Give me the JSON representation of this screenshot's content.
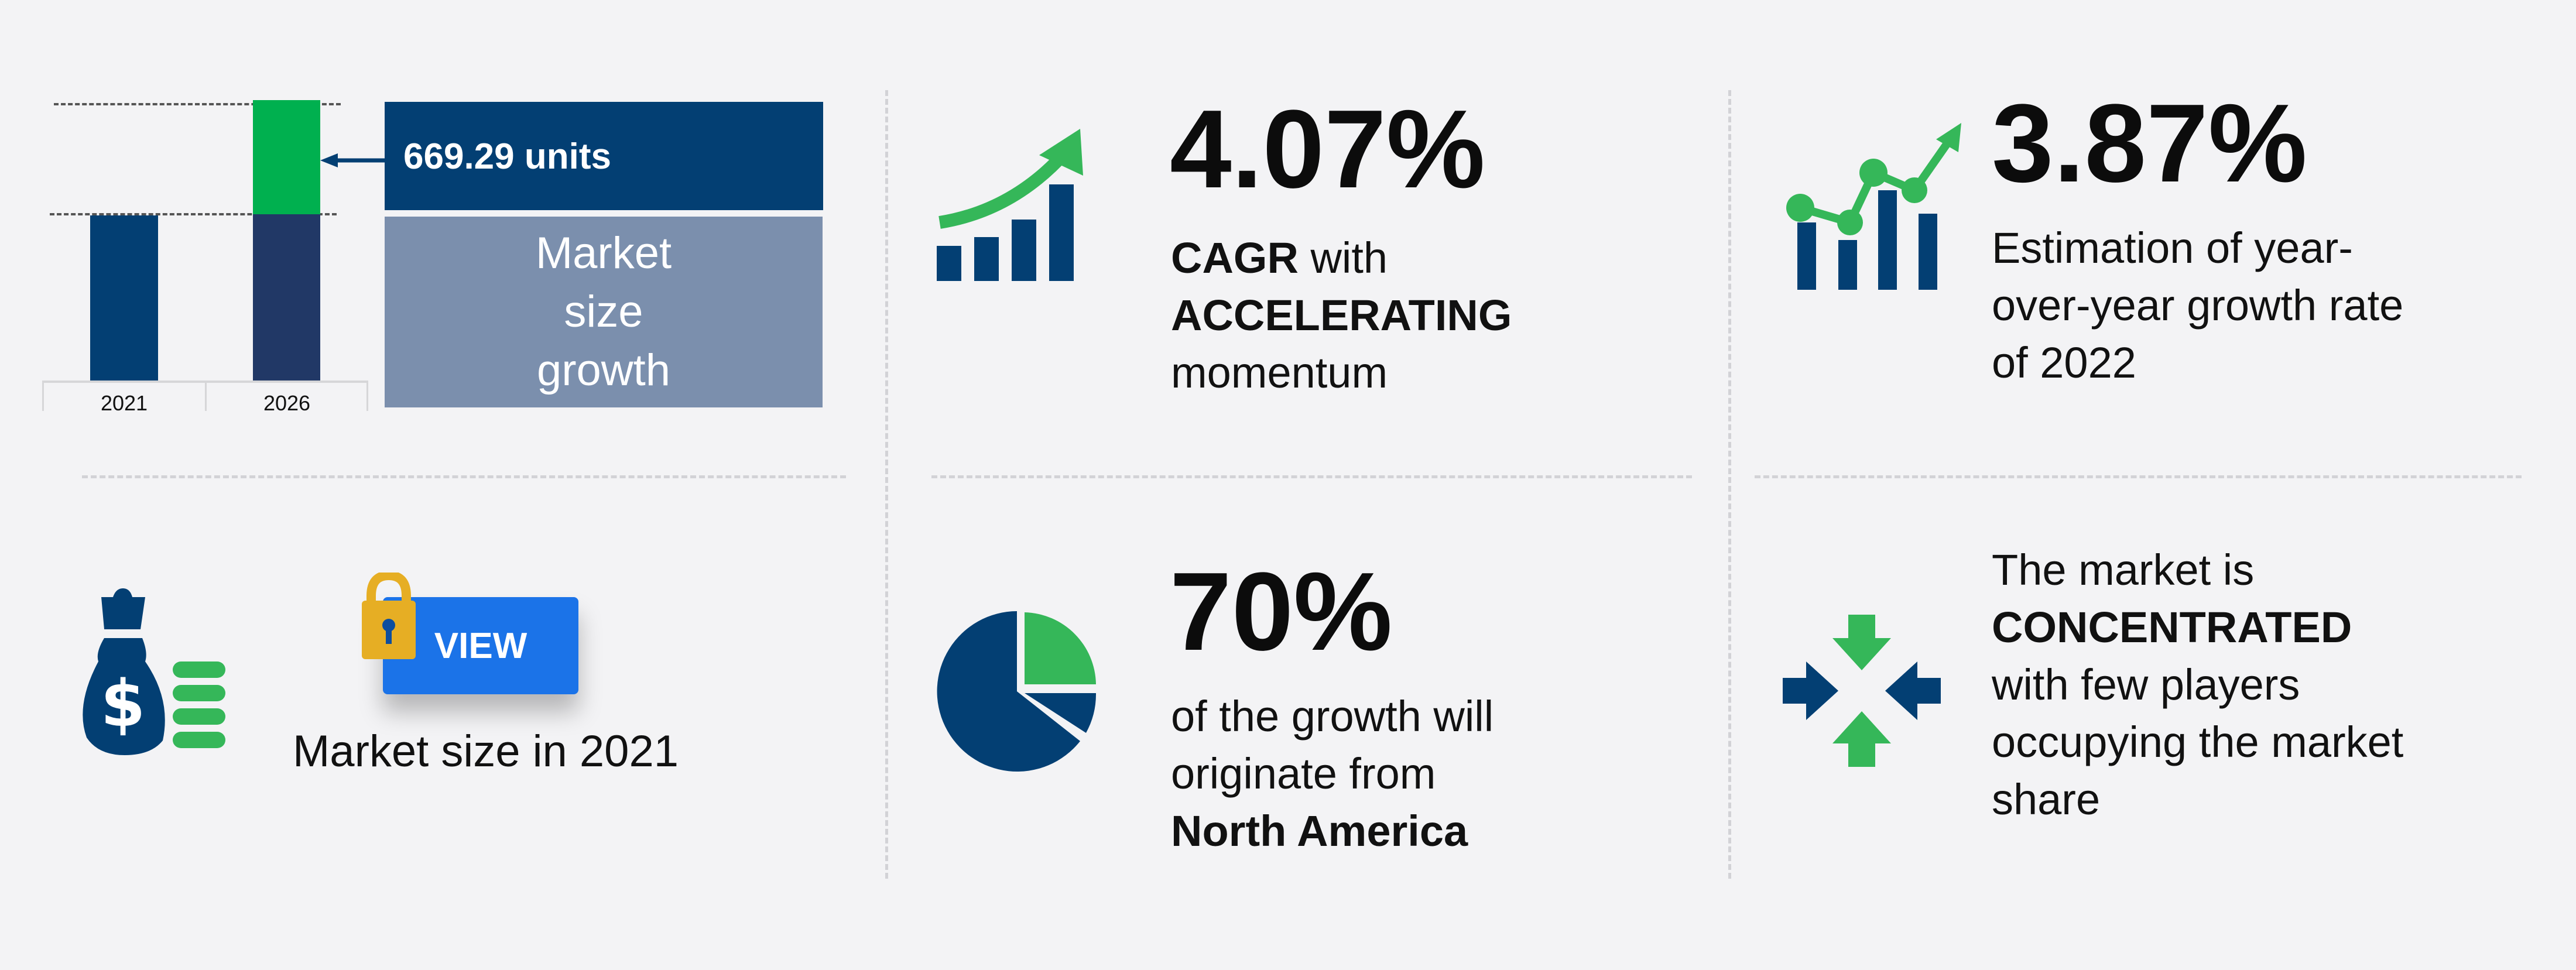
{
  "market_growth": {
    "years": [
      "2021",
      "2026"
    ],
    "increment_value": "669.29 units",
    "label": "Market size growth",
    "colors": {
      "base_bar": "#033f73",
      "base_bar_2026": "#213866",
      "increment": "#00b04f",
      "value_box": "#033f73",
      "label_box": "#7b8fad"
    }
  },
  "cagr": {
    "value": "4.07%",
    "label_bold": "CAGR",
    "label_rest": " with",
    "line2": "ACCELERATING",
    "line3": "momentum",
    "icon": "rising-bars-arrow-icon"
  },
  "yoy": {
    "value": "3.87%",
    "lines": [
      "Estimation of year-",
      "over-year growth rate",
      "of 2022"
    ],
    "icon": "growth-chart-icon"
  },
  "market_size_2021": {
    "button_label": "VIEW",
    "label": "Market size in 2021",
    "icons": [
      "money-bag-icon",
      "lock-icon"
    ],
    "button_color": "#1b73e8",
    "lock_color": "#e6ae24"
  },
  "region": {
    "value": "70%",
    "lines": [
      "of the growth will",
      "originate from"
    ],
    "region_name": "North America",
    "icon": "pie-chart-icon"
  },
  "concentration": {
    "line1": "The market is",
    "line2": "CONCENTRATED",
    "lines": [
      "with few players",
      "occupying the market",
      "share"
    ],
    "icon": "converging-arrows-icon"
  }
}
